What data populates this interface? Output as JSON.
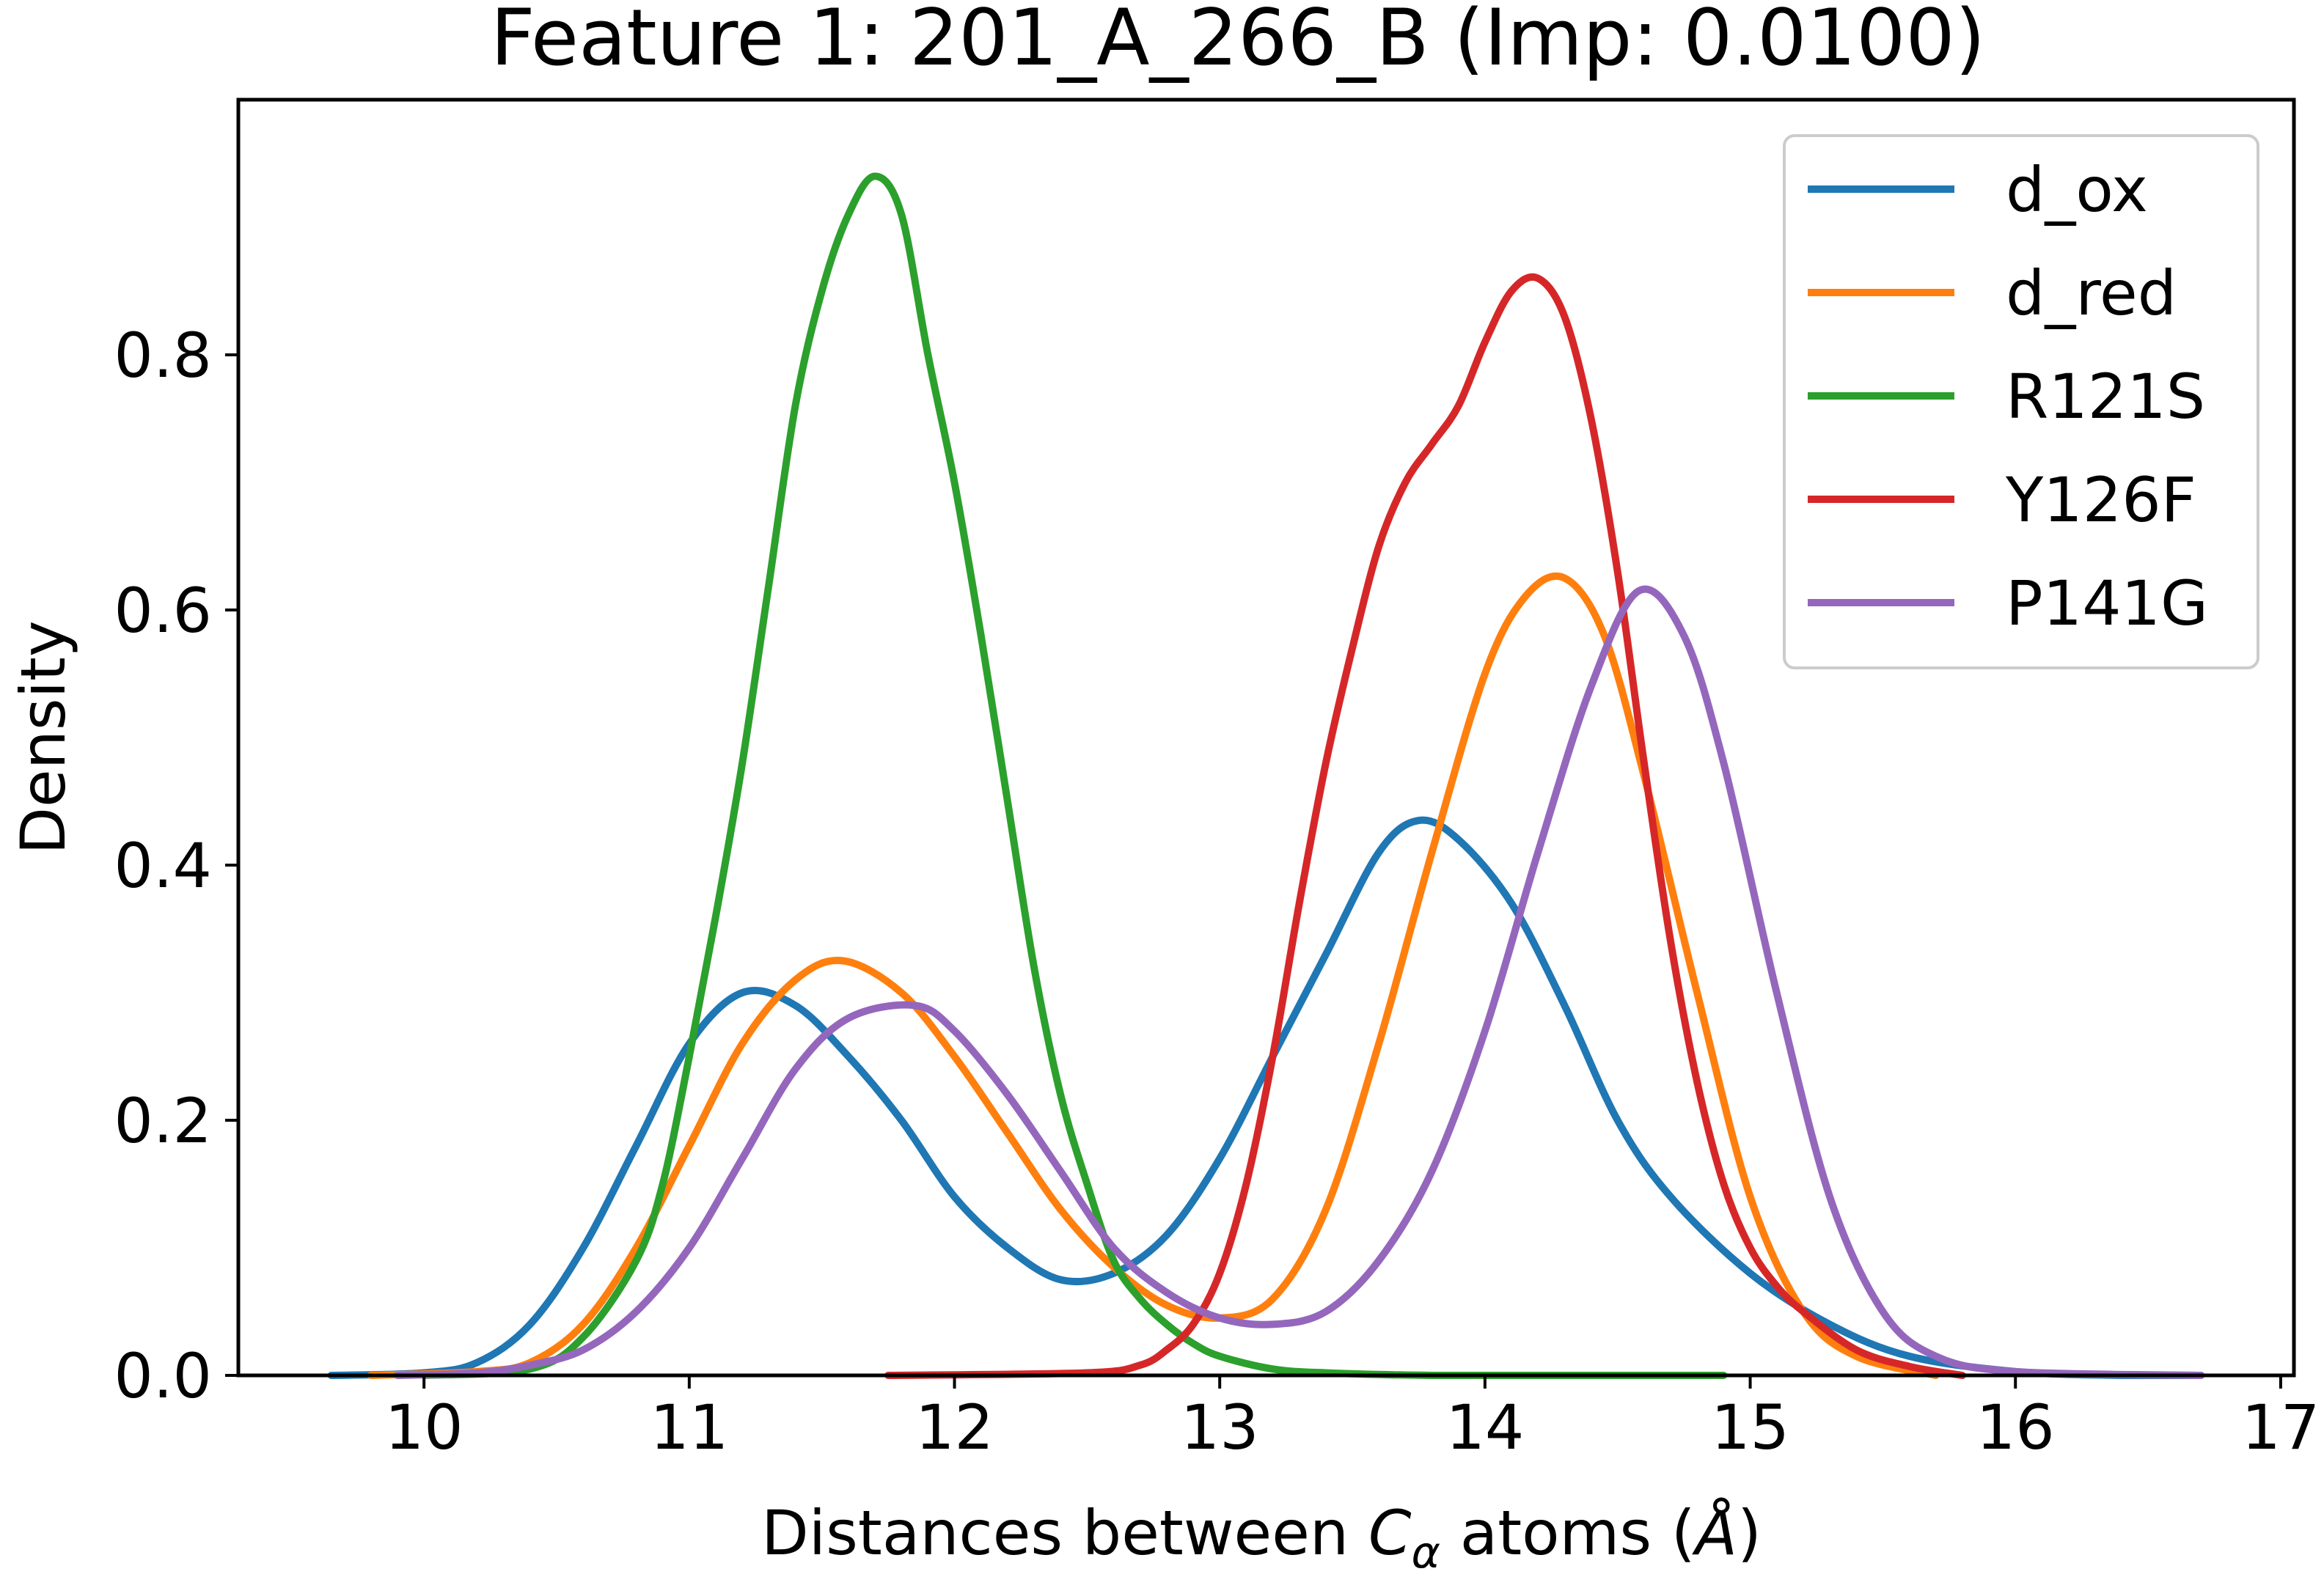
{
  "chart_data": {
    "type": "line",
    "title": "Feature 1: 201_A_266_B (Imp: 0.0100)",
    "xlabel": "Distances between C_α atoms (Å)",
    "xlabel_parts": {
      "prefix": "Distances between ",
      "symbol": "C",
      "subscript": "α",
      "suffix": " atoms (",
      "unit": "Å",
      "close": ")"
    },
    "ylabel": "Density",
    "xlim": [
      9.3,
      17.05
    ],
    "ylim": [
      0.0,
      1.0
    ],
    "xticks": [
      10,
      11,
      12,
      13,
      14,
      15,
      16,
      17
    ],
    "xtick_labels": [
      "10",
      "11",
      "12",
      "13",
      "14",
      "15",
      "16",
      "17"
    ],
    "yticks": [
      0.0,
      0.2,
      0.4,
      0.6,
      0.8
    ],
    "ytick_labels": [
      "0.0",
      "0.2",
      "0.4",
      "0.6",
      "0.8"
    ],
    "grid": false,
    "legend_position": "top-right",
    "series": [
      {
        "name": "d_ox",
        "color": "#1f77b4",
        "x": [
          9.65,
          10.0,
          10.2,
          10.4,
          10.6,
          10.8,
          11.0,
          11.2,
          11.4,
          11.6,
          11.8,
          12.0,
          12.2,
          12.4,
          12.6,
          12.8,
          13.0,
          13.2,
          13.4,
          13.6,
          13.75,
          13.9,
          14.1,
          14.3,
          14.5,
          14.7,
          15.0,
          15.3,
          15.6,
          16.0,
          16.4,
          16.7
        ],
        "y": [
          0.0,
          0.002,
          0.01,
          0.04,
          0.1,
          0.18,
          0.26,
          0.3,
          0.29,
          0.25,
          0.2,
          0.14,
          0.1,
          0.075,
          0.08,
          0.11,
          0.17,
          0.25,
          0.33,
          0.41,
          0.435,
          0.42,
          0.37,
          0.29,
          0.2,
          0.14,
          0.08,
          0.04,
          0.015,
          0.003,
          0.0,
          0.0
        ]
      },
      {
        "name": "d_red",
        "color": "#ff7f0e",
        "x": [
          9.8,
          10.2,
          10.4,
          10.6,
          10.8,
          11.0,
          11.2,
          11.4,
          11.58,
          11.8,
          12.0,
          12.2,
          12.4,
          12.6,
          12.8,
          13.0,
          13.2,
          13.4,
          13.6,
          13.8,
          14.0,
          14.15,
          14.3,
          14.45,
          14.6,
          14.8,
          15.0,
          15.2,
          15.4,
          15.7
        ],
        "y": [
          0.0,
          0.003,
          0.01,
          0.04,
          0.1,
          0.18,
          0.26,
          0.31,
          0.325,
          0.3,
          0.25,
          0.19,
          0.13,
          0.085,
          0.055,
          0.045,
          0.06,
          0.13,
          0.26,
          0.41,
          0.55,
          0.61,
          0.625,
          0.58,
          0.47,
          0.3,
          0.14,
          0.05,
          0.015,
          0.0
        ]
      },
      {
        "name": "R121S",
        "color": "#2ca02c",
        "x": [
          10.0,
          10.4,
          10.6,
          10.8,
          10.9,
          11.0,
          11.1,
          11.2,
          11.3,
          11.4,
          11.5,
          11.6,
          11.7,
          11.8,
          11.9,
          12.0,
          12.1,
          12.2,
          12.3,
          12.4,
          12.5,
          12.6,
          12.7,
          12.8,
          12.9,
          13.0,
          13.2,
          13.4,
          13.8,
          14.3,
          14.9
        ],
        "y": [
          0.0,
          0.005,
          0.03,
          0.09,
          0.15,
          0.25,
          0.36,
          0.48,
          0.62,
          0.76,
          0.85,
          0.91,
          0.94,
          0.91,
          0.8,
          0.7,
          0.58,
          0.45,
          0.32,
          0.22,
          0.15,
          0.09,
          0.06,
          0.04,
          0.025,
          0.015,
          0.005,
          0.002,
          0.0,
          0.0,
          0.0
        ]
      },
      {
        "name": "Y126F",
        "color": "#d62728",
        "x": [
          11.75,
          12.5,
          12.7,
          12.8,
          12.9,
          13.0,
          13.1,
          13.2,
          13.3,
          13.4,
          13.5,
          13.6,
          13.7,
          13.8,
          13.9,
          14.0,
          14.1,
          14.2,
          14.3,
          14.4,
          14.5,
          14.6,
          14.7,
          14.8,
          14.9,
          15.0,
          15.1,
          15.2,
          15.4,
          15.6,
          15.8
        ],
        "y": [
          0.0,
          0.002,
          0.008,
          0.02,
          0.04,
          0.08,
          0.15,
          0.25,
          0.37,
          0.48,
          0.57,
          0.65,
          0.7,
          0.73,
          0.76,
          0.81,
          0.85,
          0.86,
          0.83,
          0.75,
          0.63,
          0.48,
          0.34,
          0.23,
          0.15,
          0.1,
          0.07,
          0.05,
          0.02,
          0.007,
          0.0
        ]
      },
      {
        "name": "P141G",
        "color": "#9467bd",
        "x": [
          9.9,
          10.2,
          10.4,
          10.6,
          10.8,
          11.0,
          11.2,
          11.4,
          11.6,
          11.85,
          12.0,
          12.2,
          12.4,
          12.6,
          12.8,
          13.0,
          13.2,
          13.4,
          13.6,
          13.8,
          14.0,
          14.2,
          14.4,
          14.58,
          14.75,
          14.9,
          15.1,
          15.3,
          15.5,
          15.7,
          16.0,
          16.7
        ],
        "y": [
          0.0,
          0.002,
          0.008,
          0.02,
          0.05,
          0.1,
          0.17,
          0.24,
          0.28,
          0.29,
          0.27,
          0.22,
          0.16,
          0.1,
          0.065,
          0.045,
          0.04,
          0.05,
          0.09,
          0.16,
          0.27,
          0.41,
          0.54,
          0.615,
          0.58,
          0.48,
          0.3,
          0.14,
          0.05,
          0.015,
          0.003,
          0.0
        ]
      }
    ]
  }
}
